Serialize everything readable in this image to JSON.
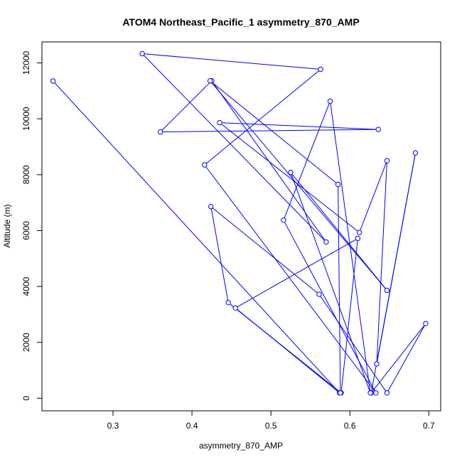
{
  "chart_data": {
    "type": "line",
    "title": "ATOM4 Northeast_Pacific_1 asymmetry_870_AMP",
    "xlabel": "asymmetry_870_AMP",
    "ylabel": "Altitude (m)",
    "xlim": [
      0.21,
      0.715
    ],
    "ylim": [
      -450,
      12750
    ],
    "xticks": [
      0.3,
      0.4,
      0.5,
      0.6,
      0.7
    ],
    "xtick_labels": [
      "0.3",
      "0.4",
      "0.5",
      "0.6",
      "0.7"
    ],
    "yticks": [
      0,
      2000,
      4000,
      6000,
      8000,
      10000,
      12000
    ],
    "ytick_labels": [
      "0",
      "2000",
      "4000",
      "6000",
      "8000",
      "10000",
      "12000"
    ],
    "grid": false,
    "series": [
      {
        "color": "#0000ff",
        "markers": "open-circle",
        "points": [
          {
            "x": 0.224,
            "y": 11350
          },
          {
            "x": 0.587,
            "y": 190
          },
          {
            "x": 0.455,
            "y": 3230
          },
          {
            "x": 0.61,
            "y": 5720
          },
          {
            "x": 0.589,
            "y": 190
          },
          {
            "x": 0.446,
            "y": 3420
          },
          {
            "x": 0.424,
            "y": 6860
          },
          {
            "x": 0.561,
            "y": 3720
          },
          {
            "x": 0.647,
            "y": 190
          },
          {
            "x": 0.696,
            "y": 2670
          },
          {
            "x": 0.627,
            "y": 190
          },
          {
            "x": 0.683,
            "y": 8780
          },
          {
            "x": 0.634,
            "y": 1230
          },
          {
            "x": 0.647,
            "y": 8500
          },
          {
            "x": 0.612,
            "y": 5930
          },
          {
            "x": 0.435,
            "y": 9860
          },
          {
            "x": 0.636,
            "y": 9620
          },
          {
            "x": 0.36,
            "y": 9530
          },
          {
            "x": 0.425,
            "y": 11360
          },
          {
            "x": 0.57,
            "y": 5590
          },
          {
            "x": 0.337,
            "y": 12330
          },
          {
            "x": 0.563,
            "y": 11770
          },
          {
            "x": 0.416,
            "y": 8350
          },
          {
            "x": 0.633,
            "y": 190
          },
          {
            "x": 0.516,
            "y": 6370
          },
          {
            "x": 0.575,
            "y": 10630
          },
          {
            "x": 0.626,
            "y": 190
          },
          {
            "x": 0.525,
            "y": 8080
          },
          {
            "x": 0.647,
            "y": 3860
          },
          {
            "x": 0.423,
            "y": 11360
          },
          {
            "x": 0.585,
            "y": 7650
          },
          {
            "x": 0.588,
            "y": 190
          }
        ]
      }
    ]
  }
}
